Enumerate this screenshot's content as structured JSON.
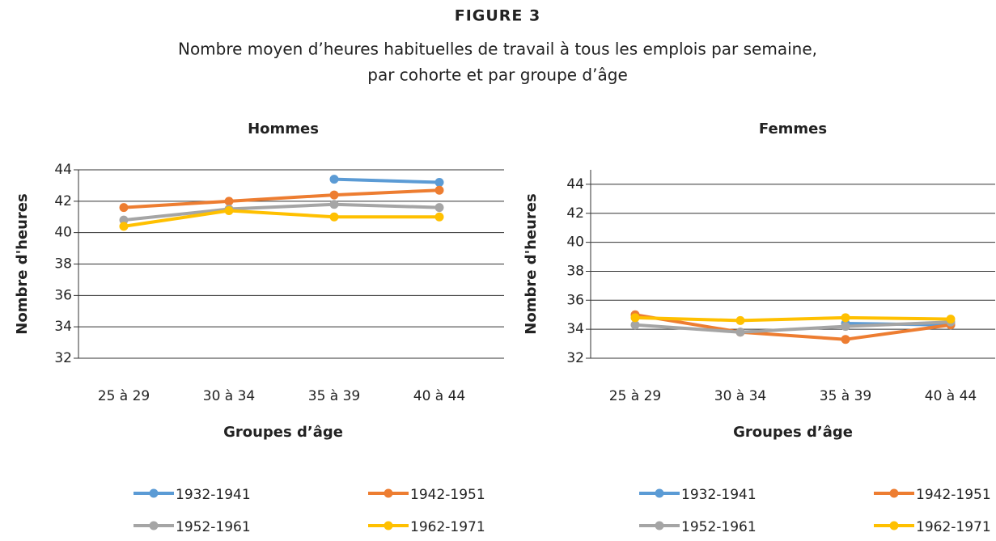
{
  "figure": "FIGURE 3",
  "title": [
    "Nombre moyen d’heures habituelles de travail à tous les emplois par semaine,",
    "par cohorte et par groupe d’âge"
  ],
  "chart_data": [
    {
      "type": "line",
      "title": "Hommes",
      "y_label": "Nombre d'heures",
      "x_label": "Groupes d’âge",
      "categories": [
        "25 à 29",
        "30 à 34",
        "35 à 39",
        "40 à 44"
      ],
      "ylim": [
        32,
        44
      ],
      "yticks": [
        32,
        34,
        36,
        38,
        40,
        42,
        44
      ],
      "grid": true,
      "series": [
        {
          "name": "1932-1941",
          "color": "#5b9bd5",
          "values": [
            null,
            null,
            43.4,
            43.2
          ]
        },
        {
          "name": "1942-1951",
          "color": "#ed7d31",
          "values": [
            41.6,
            42.0,
            42.4,
            42.7
          ]
        },
        {
          "name": "1952-1961",
          "color": "#a5a5a5",
          "values": [
            40.8,
            41.5,
            41.8,
            41.6
          ]
        },
        {
          "name": "1962-1971",
          "color": "#ffc000",
          "values": [
            40.4,
            41.4,
            41.0,
            41.0
          ]
        }
      ]
    },
    {
      "type": "line",
      "title": "Femmes",
      "y_label": "Nombre d'heures",
      "x_label": "Groupes d’âge",
      "categories": [
        "25 à 29",
        "30 à 34",
        "35 à 39",
        "40 à 44"
      ],
      "ylim": [
        32,
        45
      ],
      "yticks": [
        32,
        34,
        36,
        38,
        40,
        42,
        44
      ],
      "grid": true,
      "series": [
        {
          "name": "1932-1941",
          "color": "#5b9bd5",
          "values": [
            null,
            null,
            34.4,
            34.3
          ]
        },
        {
          "name": "1942-1951",
          "color": "#ed7d31",
          "values": [
            35.0,
            33.8,
            33.3,
            34.3
          ]
        },
        {
          "name": "1952-1961",
          "color": "#a5a5a5",
          "values": [
            34.3,
            33.8,
            34.2,
            34.5
          ]
        },
        {
          "name": "1962-1971",
          "color": "#ffc000",
          "values": [
            34.8,
            34.6,
            34.8,
            34.7
          ]
        }
      ]
    }
  ]
}
